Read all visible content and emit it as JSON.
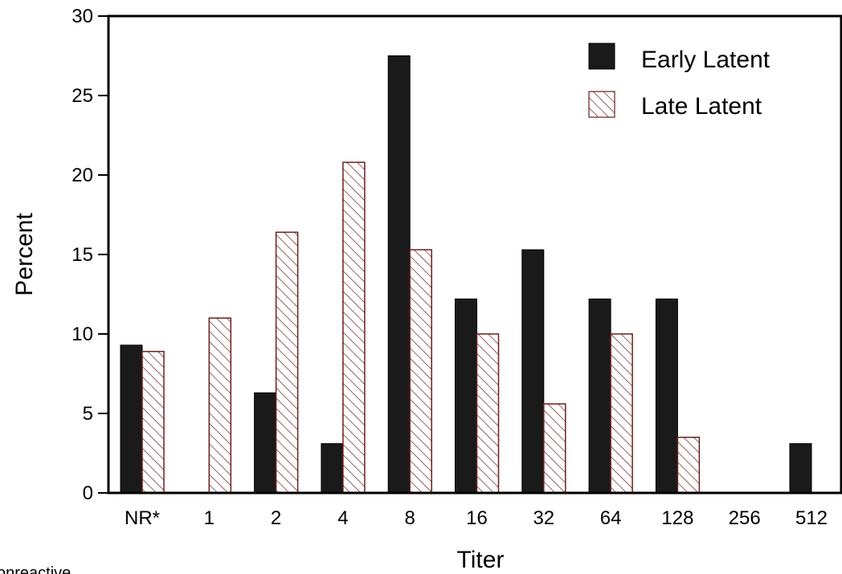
{
  "chart_data": {
    "type": "bar",
    "title": "",
    "xlabel": "Titer",
    "ylabel": "Percent",
    "ylim": [
      0,
      30
    ],
    "yticks": [
      0,
      5,
      10,
      15,
      20,
      25,
      30
    ],
    "categories": [
      "NR*",
      "1",
      "2",
      "4",
      "8",
      "16",
      "32",
      "64",
      "128",
      "256",
      "512"
    ],
    "series": [
      {
        "name": "Early Latent",
        "fill": "#1a1a1a",
        "pattern": "solid",
        "values": [
          9.3,
          0,
          6.3,
          3.1,
          27.5,
          12.2,
          15.3,
          12.2,
          12.2,
          0,
          3.1
        ]
      },
      {
        "name": "Late Latent",
        "fill": "#ffffff",
        "stroke": "#6b1f1f",
        "pattern": "hatched",
        "values": [
          8.9,
          11.0,
          16.4,
          20.8,
          15.3,
          10.0,
          5.6,
          10.0,
          3.5,
          0,
          0
        ]
      }
    ],
    "legend_position": "top-right",
    "grid": false,
    "footnote": "onreactive"
  }
}
